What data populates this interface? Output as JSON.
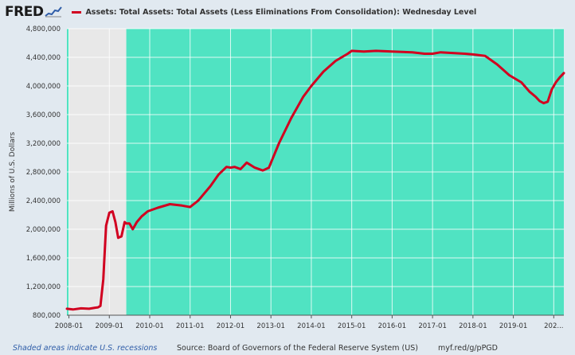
{
  "header": {
    "logo_text": "FRED",
    "legend_color": "#d10020"
  },
  "chart_data": {
    "type": "line",
    "title": "Assets: Total Assets: Total Assets (Less Eliminations From Consolidation): Wednesday Level",
    "xlabel": "",
    "ylabel": "Millions of U.S. Dollars",
    "ylim": [
      800000,
      4800000
    ],
    "yticks": [
      800000,
      1200000,
      1600000,
      2000000,
      2400000,
      2800000,
      3200000,
      3600000,
      4000000,
      4400000,
      4800000
    ],
    "ytick_labels": [
      "800,000",
      "1,200,000",
      "1,600,000",
      "2,000,000",
      "2,400,000",
      "2,800,000",
      "3,200,000",
      "3,600,000",
      "4,000,000",
      "4,400,000",
      "4,800,000"
    ],
    "xlim": [
      2007.95,
      2020.25
    ],
    "xticks": [
      2008.0,
      2009.0,
      2010.0,
      2011.0,
      2012.0,
      2013.0,
      2014.0,
      2015.0,
      2016.0,
      2017.0,
      2018.0,
      2019.0,
      2020.0
    ],
    "xtick_labels": [
      "2008-01",
      "2009-01",
      "2010-01",
      "2011-01",
      "2012-01",
      "2013-01",
      "2014-01",
      "2015-01",
      "2016-01",
      "2017-01",
      "2018-01",
      "2019-01",
      "202..."
    ],
    "grid": true,
    "plot_background": "#50e3c2",
    "recession_color": "#e8e8e8",
    "line_color": "#d10020",
    "recession": [
      2008.0,
      2009.42
    ],
    "series": [
      {
        "x": [
          2007.95,
          2008.1,
          2008.3,
          2008.5,
          2008.65,
          2008.72,
          2008.78,
          2008.85,
          2008.92,
          2009.0,
          2009.08,
          2009.15,
          2009.22,
          2009.3,
          2009.38,
          2009.42,
          2009.5,
          2009.58,
          2009.68,
          2009.8,
          2009.95,
          2010.2,
          2010.5,
          2010.8,
          2011.0,
          2011.2,
          2011.5,
          2011.7,
          2011.9,
          2012.0,
          2012.1,
          2012.25,
          2012.4,
          2012.6,
          2012.8,
          2012.95,
          2013.2,
          2013.5,
          2013.8,
          2014.0,
          2014.3,
          2014.6,
          2014.9,
          2015.0,
          2015.3,
          2015.6,
          2016.0,
          2016.5,
          2016.8,
          2017.0,
          2017.2,
          2017.5,
          2017.8,
          2018.0,
          2018.3,
          2018.6,
          2018.9,
          2019.2,
          2019.4,
          2019.55,
          2019.65,
          2019.75,
          2019.85,
          2019.95,
          2020.05,
          2020.15,
          2020.25
        ],
        "y": [
          890000,
          880000,
          895000,
          890000,
          905000,
          910000,
          930000,
          1300000,
          2050000,
          2230000,
          2250000,
          2100000,
          1880000,
          1900000,
          2100000,
          2080000,
          2080000,
          2000000,
          2100000,
          2180000,
          2250000,
          2300000,
          2350000,
          2330000,
          2310000,
          2400000,
          2600000,
          2760000,
          2870000,
          2860000,
          2870000,
          2840000,
          2930000,
          2860000,
          2820000,
          2860000,
          3200000,
          3550000,
          3850000,
          4000000,
          4200000,
          4350000,
          4450000,
          4490000,
          4480000,
          4490000,
          4480000,
          4470000,
          4450000,
          4450000,
          4470000,
          4460000,
          4450000,
          4440000,
          4420000,
          4300000,
          4150000,
          4050000,
          3920000,
          3850000,
          3790000,
          3760000,
          3780000,
          3950000,
          4050000,
          4120000,
          4180000
        ]
      }
    ]
  },
  "footer": {
    "recession_note": "Shaded areas indicate U.S. recessions",
    "source": "Source: Board of Governors of the Federal Reserve System (US)",
    "link": "myf.red/g/pPGD"
  }
}
